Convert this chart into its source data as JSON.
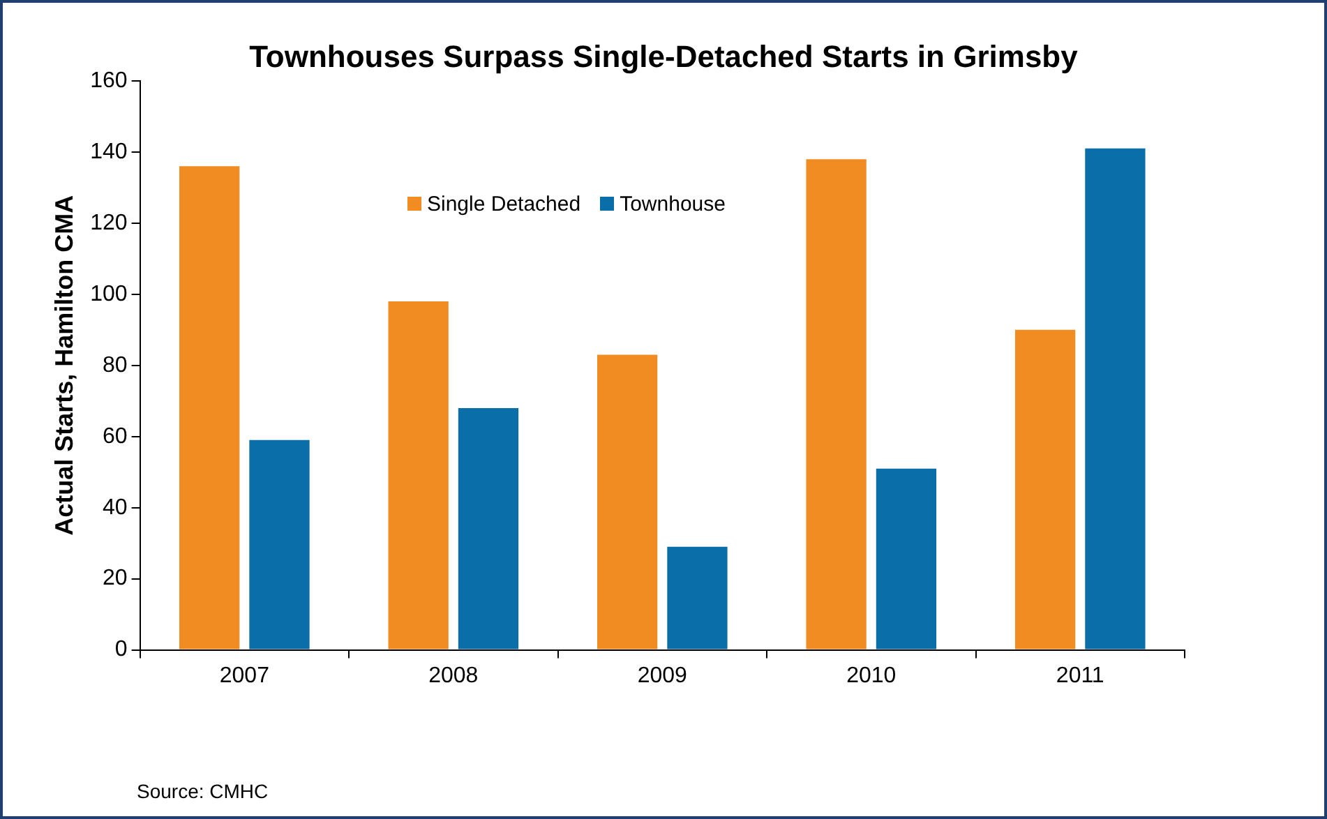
{
  "chart_data": {
    "type": "bar",
    "title": "Townhouses Surpass Single-Detached Starts in Grimsby",
    "ylabel": "Actual Starts, Hamilton CMA",
    "categories": [
      "2007",
      "2008",
      "2009",
      "2010",
      "2011"
    ],
    "series": [
      {
        "name": "Single Detached",
        "color": "#f08c21",
        "values": [
          136,
          98,
          83,
          138,
          90
        ]
      },
      {
        "name": "Townhouse",
        "color": "#0a6ea8",
        "values": [
          59,
          68,
          29,
          51,
          141
        ]
      }
    ],
    "ylim": [
      0,
      160
    ],
    "yticks": [
      0,
      20,
      40,
      60,
      80,
      100,
      120,
      140,
      160
    ],
    "legend": "top",
    "annotations": [
      "Source: CMHC"
    ]
  }
}
